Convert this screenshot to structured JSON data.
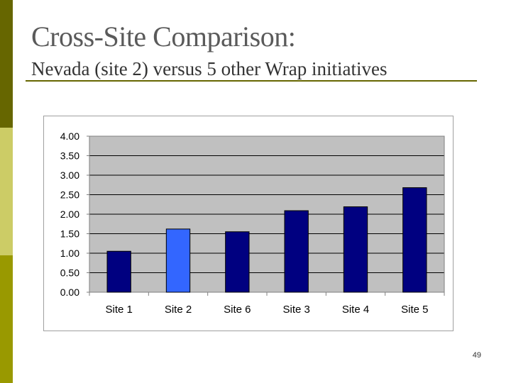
{
  "slide": {
    "title": "Cross-Site Comparison:",
    "subtitle": "Nevada (site 2) versus 5 other Wrap initiatives",
    "page_number": "49"
  },
  "colors": {
    "sidebar_top": "#666600",
    "sidebar_mid": "#cccc66",
    "sidebar_bottom": "#999900",
    "plot_background": "#c0c0c0",
    "bar_default": "#000080",
    "bar_highlight": "#3366ff"
  },
  "chart_data": {
    "type": "bar",
    "categories": [
      "Site 1",
      "Site 2",
      "Site 6",
      "Site 3",
      "Site 4",
      "Site 5"
    ],
    "values": [
      1.05,
      1.62,
      1.55,
      2.09,
      2.19,
      2.68
    ],
    "highlight_category": "Site 2",
    "ylim": [
      0,
      4
    ],
    "yticks": [
      "0.00",
      "0.50",
      "1.00",
      "1.50",
      "2.00",
      "2.50",
      "3.00",
      "3.50",
      "4.00"
    ],
    "grid": true,
    "legend": "none",
    "title": "",
    "xlabel": "",
    "ylabel": ""
  }
}
